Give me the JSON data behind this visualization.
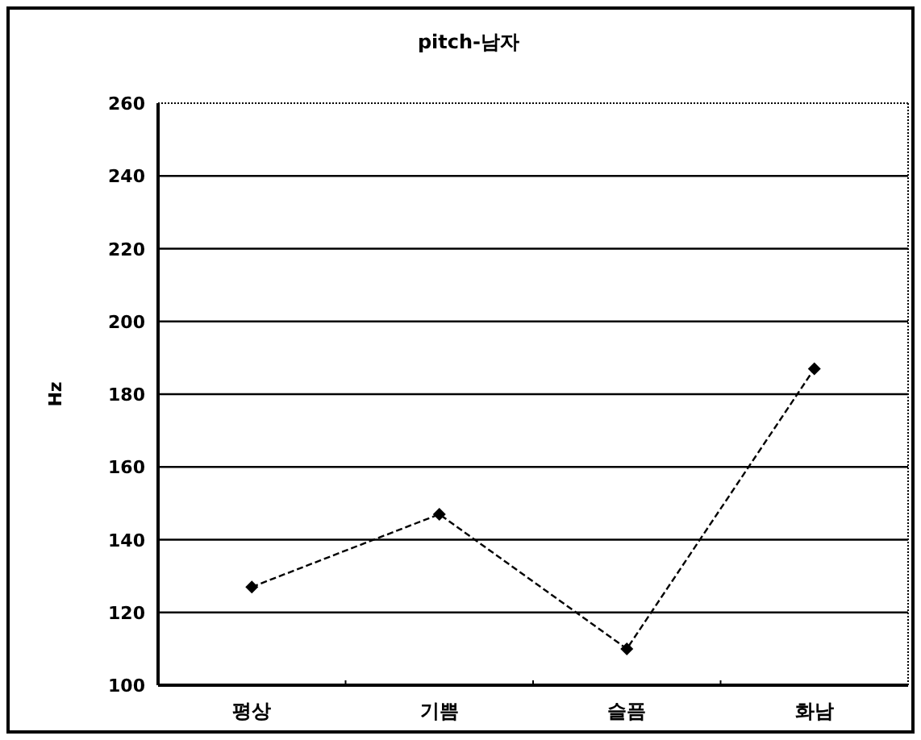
{
  "chart_data": {
    "type": "line",
    "title": "pitch-남자",
    "ylabel": "Hz",
    "categories": [
      "평상",
      "기쁨",
      "슬픔",
      "화남"
    ],
    "series": [
      {
        "color": "#000000",
        "values": [
          127,
          147,
          110,
          187
        ]
      }
    ],
    "ylim": [
      100,
      260
    ],
    "yticks": [
      100,
      120,
      140,
      160,
      180,
      200,
      220,
      240,
      260
    ],
    "grid": "y",
    "marker": "diamond",
    "line_style": "dashed"
  }
}
